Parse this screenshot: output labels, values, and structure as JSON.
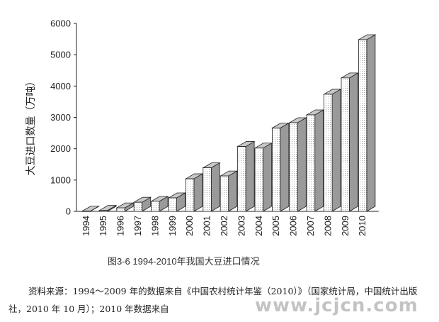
{
  "chart_data": {
    "type": "bar",
    "title": "",
    "xlabel": "",
    "ylabel": "大豆进口数量（万吨）",
    "ylim": [
      0,
      6000
    ],
    "yticks": [
      "0",
      "1000",
      "2000",
      "3000",
      "4000",
      "5000",
      "6000"
    ],
    "categories": [
      "1994",
      "1995",
      "1996",
      "1997",
      "1998",
      "1999",
      "2000",
      "2001",
      "2002",
      "2003",
      "2004",
      "2005",
      "2006",
      "2007",
      "2008",
      "2009",
      "2010"
    ],
    "values": [
      5,
      30,
      110,
      290,
      320,
      430,
      1040,
      1390,
      1130,
      2070,
      2020,
      2660,
      2830,
      3080,
      3740,
      4260,
      5480
    ],
    "style": "3d-bar",
    "colors": {
      "front": "#ffffff",
      "front_dots": "#8a8a8a",
      "side": "#9a9a9a",
      "top": "#c8c8c8",
      "edge": "#222222"
    }
  },
  "caption": "图3-6  1994-2010年我国大豆进口情况",
  "source_text": "资料来源：1994～2009 年的数据来自《中国农村统计年鉴（2010）》（国家统计局，中国统计出版社，2010 年 10 月）；2010 年数据来自",
  "watermark": "www.jcjcn.com"
}
